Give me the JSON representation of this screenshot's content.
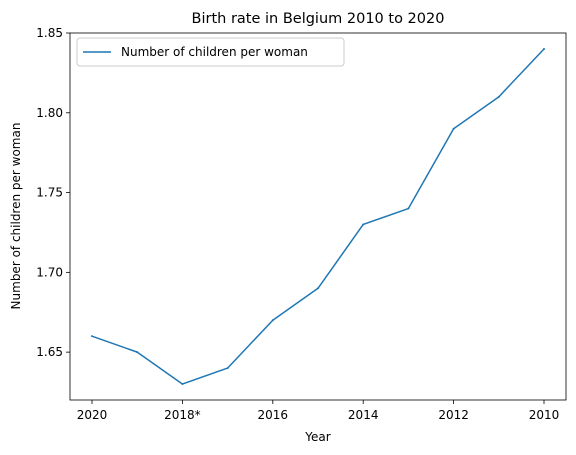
{
  "chart_data": {
    "type": "line",
    "title": "Birth rate in Belgium 2010 to 2020",
    "xlabel": "Year",
    "ylabel": "Number of children per woman",
    "x": [
      "2020",
      "2019",
      "2018*",
      "2017",
      "2016",
      "2015",
      "2014",
      "2013",
      "2012",
      "2011",
      "2010"
    ],
    "x_tick_labels": [
      "2020",
      "2018*",
      "2016",
      "2014",
      "2012",
      "2010"
    ],
    "series": [
      {
        "name": "Number of children per woman",
        "color": "#1f77b4",
        "values": [
          1.66,
          1.65,
          1.63,
          1.64,
          1.67,
          1.69,
          1.73,
          1.74,
          1.79,
          1.81,
          1.84
        ]
      }
    ],
    "ylim": [
      1.62,
      1.85
    ],
    "y_ticks": [
      1.65,
      1.7,
      1.75,
      1.8,
      1.85
    ],
    "y_tick_labels": [
      "1.65",
      "1.70",
      "1.75",
      "1.80",
      "1.85"
    ],
    "grid": false,
    "legend_position": "upper-left"
  }
}
